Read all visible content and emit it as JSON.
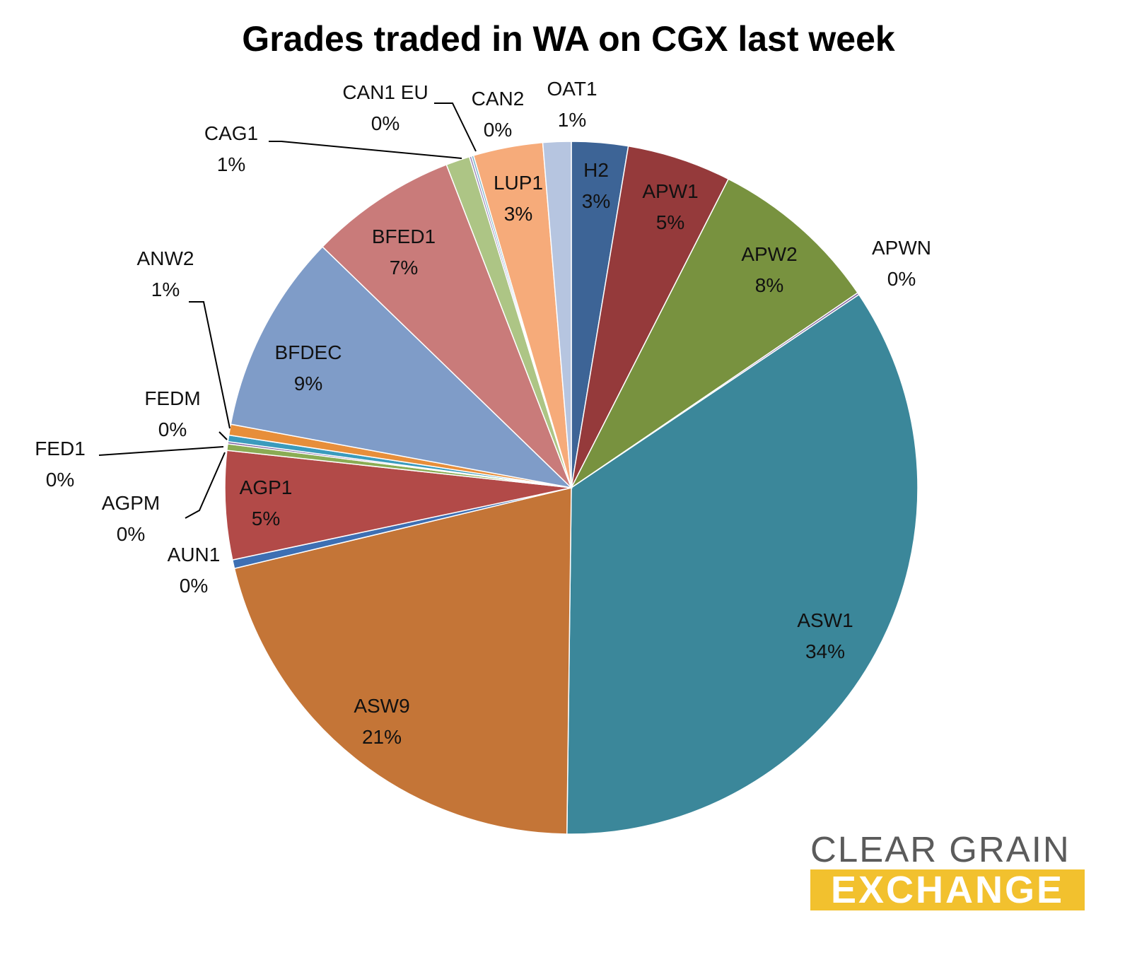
{
  "chart_data": {
    "type": "pie",
    "title": "Grades traded in WA on CGX last week",
    "slices": [
      {
        "name": "H2",
        "value": 2.6,
        "label_value": "3%",
        "color": "#3d6496"
      },
      {
        "name": "APW1",
        "value": 4.8,
        "label_value": "5%",
        "color": "#953a3b"
      },
      {
        "name": "APW2",
        "value": 7.9,
        "label_value": "8%",
        "color": "#78923f"
      },
      {
        "name": "APWN",
        "value": 0.1,
        "label_value": "0%",
        "color": "#7b5b9a"
      },
      {
        "name": "ASW1",
        "value": 34.2,
        "label_value": "34%",
        "color": "#3b879a"
      },
      {
        "name": "ASW9",
        "value": 20.8,
        "label_value": "21%",
        "color": "#c47537"
      },
      {
        "name": "AUN1",
        "value": 0.4,
        "label_value": "0%",
        "color": "#3d6fb3"
      },
      {
        "name": "AGP1",
        "value": 5.0,
        "label_value": "5%",
        "color": "#b24a48"
      },
      {
        "name": "AGPM",
        "value": 0.3,
        "label_value": "0%",
        "color": "#8aac54"
      },
      {
        "name": "FED1",
        "value": 0.1,
        "label_value": "0%",
        "color": "#7d63a3"
      },
      {
        "name": "FEDM",
        "value": 0.3,
        "label_value": "0%",
        "color": "#3a9bbd"
      },
      {
        "name": "ANW2",
        "value": 0.5,
        "label_value": "1%",
        "color": "#e78e3a"
      },
      {
        "name": "BFDEC",
        "value": 9.2,
        "label_value": "9%",
        "color": "#7f9cc8"
      },
      {
        "name": "BFED1",
        "value": 6.8,
        "label_value": "7%",
        "color": "#c97b7a"
      },
      {
        "name": "CAG1",
        "value": 1.1,
        "label_value": "1%",
        "color": "#adc585"
      },
      {
        "name": "CAN1 EU",
        "value": 0.1,
        "label_value": "0%",
        "color": "#9a89bb"
      },
      {
        "name": "CAN2",
        "value": 0.1,
        "label_value": "0%",
        "color": "#7fb6cc"
      },
      {
        "name": "LUP1",
        "value": 3.2,
        "label_value": "3%",
        "color": "#f6ab7a"
      },
      {
        "name": "OAT1",
        "value": 1.3,
        "label_value": "1%",
        "color": "#b6c5e0"
      }
    ],
    "legend": "none",
    "data_labels": "category and percentage"
  },
  "logo": {
    "line1": "CLEAR GRAIN",
    "line2": "EXCHANGE"
  }
}
